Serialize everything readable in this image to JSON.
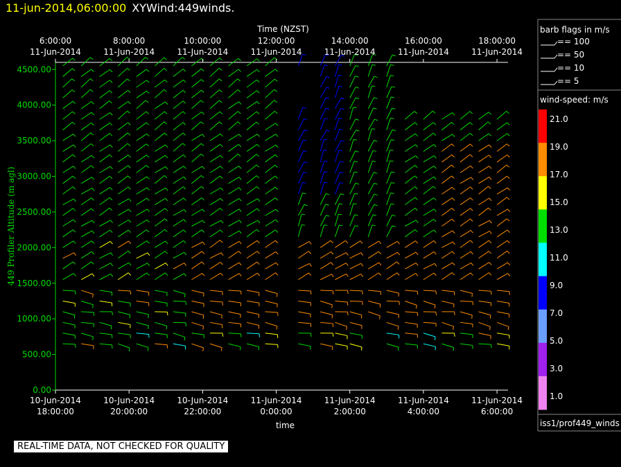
{
  "header": {
    "date_label": "11-jun-2014,06:00:00",
    "plot_name": "XYWind:449winds."
  },
  "footer": {
    "note": "REAL-TIME DATA, NOT CHECKED FOR QUALITY"
  },
  "legend": {
    "barb_title": "barb flags in m/s",
    "barb_flags": [
      "== 100",
      "== 50",
      "== 10",
      "== 5"
    ],
    "speed_title": "wind-speed: m/s",
    "source": "iss1/prof449_winds"
  },
  "chart_data": {
    "type": "wind-barb",
    "top_axis_label": "Time (NZST)",
    "bottom_axis_label": "time",
    "ylabel": "449 Profiler Altitude (m agl)",
    "ylim": [
      0,
      4600
    ],
    "y_ticks": [
      "0.00",
      "500.00",
      "1000.00",
      "1500.00",
      "2000.00",
      "2500.00",
      "3000.00",
      "3500.00",
      "4000.00",
      "4500.00"
    ],
    "top_ticks": [
      [
        "6:00:00",
        "11-Jun-2014"
      ],
      [
        "8:00:00",
        "11-Jun-2014"
      ],
      [
        "10:00:00",
        "11-Jun-2014"
      ],
      [
        "12:00:00",
        "11-Jun-2014"
      ],
      [
        "14:00:00",
        "11-Jun-2014"
      ],
      [
        "16:00:00",
        "11-Jun-2014"
      ],
      [
        "18:00:00",
        "11-Jun-2014"
      ]
    ],
    "bottom_ticks": [
      [
        "10-Jun-2014",
        "18:00:00"
      ],
      [
        "10-Jun-2014",
        "20:00:00"
      ],
      [
        "10-Jun-2014",
        "22:00:00"
      ],
      [
        "11-Jun-2014",
        "0:00:00"
      ],
      [
        "11-Jun-2014",
        "2:00:00"
      ],
      [
        "11-Jun-2014",
        "4:00:00"
      ],
      [
        "11-Jun-2014",
        "6:00:00"
      ]
    ],
    "colorbar": {
      "labels": [
        "21.0",
        "19.0",
        "17.0",
        "15.0",
        "13.0",
        "11.0",
        "9.0",
        "7.0",
        "5.0",
        "3.0",
        "1.0"
      ],
      "colors": [
        "#ff0000",
        "#ff8c00",
        "#ffff00",
        "#00dd00",
        "#00ffff",
        "#0000ff",
        "#6a9eff",
        "#a020f0",
        "#ee82ee"
      ]
    },
    "profiles_utc_hours": [
      18.2,
      18.7,
      19.2,
      19.7,
      20.2,
      20.7,
      21.2,
      21.7,
      22.2,
      22.7,
      23.2,
      23.7,
      24.6,
      25.2,
      25.6,
      26.0,
      26.5,
      27.0,
      27.5,
      28.0,
      28.5,
      29.0,
      29.5,
      30.0
    ],
    "gate_altitudes_m": [
      650,
      800,
      950,
      1100,
      1250,
      1400,
      1550,
      1700,
      1850,
      2000,
      2150,
      2300,
      2450,
      2600,
      2750,
      2900,
      3050,
      3200,
      3350,
      3500,
      3650,
      3800,
      3950,
      4100,
      4250,
      4400,
      4550
    ]
  }
}
